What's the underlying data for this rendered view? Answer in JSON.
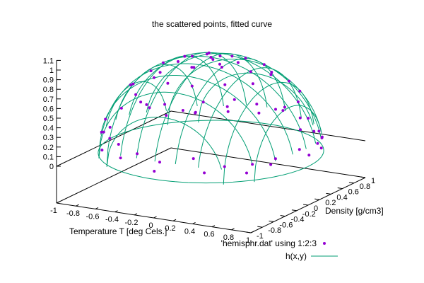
{
  "chart_data": {
    "type": "scatter",
    "title": "the scattered points, fitted curve",
    "xlabel": "Temperature T  [deg Cels.]",
    "ylabel": "Density [g/cm3]",
    "zlabel": "",
    "xlim": [
      -1,
      1
    ],
    "ylim": [
      -1,
      1
    ],
    "zlim": [
      0,
      1.1
    ],
    "x_ticks": [
      -1,
      -0.8,
      -0.6,
      -0.4,
      -0.2,
      0,
      0.2,
      0.4,
      0.6,
      0.8,
      1
    ],
    "x_tick_labels": [
      "-1",
      "-0.8",
      "-0.6",
      "-0.4",
      "-0.2",
      "0",
      "0.2",
      "0.4",
      "0.6",
      "0.8",
      "1"
    ],
    "y_ticks": [
      -1,
      -0.8,
      -0.6,
      -0.4,
      -0.2,
      0,
      0.2,
      0.4,
      0.6,
      0.8,
      1
    ],
    "y_tick_labels": [
      "-1",
      "-0.8",
      "-0.6",
      "-0.4",
      "-0.2",
      "0",
      "0.2",
      "0.4",
      "0.6",
      "0.8",
      "1"
    ],
    "z_ticks": [
      0,
      0.1,
      0.2,
      0.3,
      0.4,
      0.5,
      0.6,
      0.7,
      0.8,
      0.9,
      1,
      1.1
    ],
    "z_tick_labels": [
      "0",
      "0.1",
      "0.2",
      "0.3",
      "0.4",
      "0.5",
      "0.6",
      "0.7",
      "0.8",
      "0.9",
      "1",
      "1.1"
    ],
    "grid": false,
    "legend_position": "bottom-right",
    "series": [
      {
        "name": "'hemisphr.dat' using 1:2:3",
        "kind": "points",
        "color": "#9400d3",
        "points": [
          [
            -0.95,
            0.05,
            0.31
          ],
          [
            -0.9,
            0.3,
            0.31
          ],
          [
            -0.85,
            -0.4,
            0.34
          ],
          [
            -0.8,
            0.55,
            0.23
          ],
          [
            -0.75,
            -0.6,
            0.28
          ],
          [
            -0.7,
            0.7,
            0.14
          ],
          [
            -0.6,
            -0.75,
            0.28
          ],
          [
            -0.55,
            0.8,
            0.22
          ],
          [
            -0.45,
            -0.85,
            0.27
          ],
          [
            -0.3,
            0.92,
            0.25
          ],
          [
            -0.2,
            -0.95,
            0.24
          ],
          [
            -0.1,
            0.97,
            0.22
          ],
          [
            0.05,
            -0.98,
            0.2
          ],
          [
            0.2,
            0.95,
            0.24
          ],
          [
            0.35,
            -0.9,
            0.26
          ],
          [
            0.5,
            0.85,
            0.2
          ],
          [
            0.6,
            -0.78,
            0.18
          ],
          [
            0.7,
            0.7,
            0.14
          ],
          [
            0.78,
            -0.6,
            0.18
          ],
          [
            0.85,
            0.5,
            0.16
          ],
          [
            0.9,
            -0.4,
            0.2
          ],
          [
            0.95,
            0.25,
            0.18
          ],
          [
            0.97,
            -0.1,
            0.22
          ],
          [
            0.92,
            0.0,
            0.39
          ],
          [
            -0.8,
            0.0,
            0.6
          ],
          [
            -0.7,
            0.3,
            0.65
          ],
          [
            -0.65,
            -0.3,
            0.7
          ],
          [
            -0.5,
            0.55,
            0.66
          ],
          [
            -0.45,
            -0.55,
            0.7
          ],
          [
            -0.3,
            0.7,
            0.65
          ],
          [
            -0.25,
            -0.7,
            0.67
          ],
          [
            -0.05,
            0.78,
            0.62
          ],
          [
            0.0,
            -0.78,
            0.62
          ],
          [
            0.2,
            0.72,
            0.67
          ],
          [
            0.25,
            -0.7,
            0.66
          ],
          [
            0.45,
            0.6,
            0.65
          ],
          [
            0.5,
            -0.55,
            0.67
          ],
          [
            0.65,
            0.45,
            0.62
          ],
          [
            0.7,
            -0.35,
            0.63
          ],
          [
            0.78,
            0.2,
            0.6
          ],
          [
            0.8,
            -0.1,
            0.6
          ],
          [
            -0.55,
            0.1,
            0.83
          ],
          [
            -0.5,
            -0.2,
            0.84
          ],
          [
            -0.4,
            0.35,
            0.85
          ],
          [
            -0.35,
            -0.4,
            0.85
          ],
          [
            -0.2,
            0.5,
            0.84
          ],
          [
            -0.15,
            -0.5,
            0.85
          ],
          [
            0.05,
            0.52,
            0.85
          ],
          [
            0.1,
            -0.5,
            0.86
          ],
          [
            0.3,
            0.42,
            0.85
          ],
          [
            0.35,
            -0.35,
            0.87
          ],
          [
            0.5,
            0.2,
            0.84
          ],
          [
            0.52,
            -0.15,
            0.85
          ],
          [
            -0.3,
            0.05,
            0.95
          ],
          [
            -0.25,
            -0.15,
            0.96
          ],
          [
            -0.15,
            0.22,
            0.96
          ],
          [
            -0.05,
            -0.25,
            0.96
          ],
          [
            0.1,
            0.2,
            0.97
          ],
          [
            0.15,
            -0.1,
            0.98
          ],
          [
            0.25,
            0.05,
            0.97
          ],
          [
            0.0,
            0.0,
            1.0
          ],
          [
            -0.1,
            0.1,
            0.99
          ],
          [
            0.05,
            -0.05,
            1.0
          ],
          [
            -0.6,
            0.75,
            0.12
          ],
          [
            -0.35,
            0.88,
            0.18
          ],
          [
            0.1,
            0.96,
            0.2
          ],
          [
            0.4,
            0.88,
            0.18
          ],
          [
            0.6,
            0.78,
            0.1
          ],
          [
            -0.98,
            -0.1,
            0.15
          ],
          [
            -0.92,
            -0.35,
            0.18
          ],
          [
            -0.88,
            0.42,
            0.22
          ],
          [
            -0.72,
            -0.68,
            0.12
          ],
          [
            -0.4,
            -0.9,
            0.15
          ],
          [
            0.0,
            -0.99,
            0.1
          ],
          [
            0.45,
            -0.88,
            0.12
          ],
          [
            0.75,
            -0.65,
            0.1
          ],
          [
            0.88,
            -0.45,
            0.15
          ],
          [
            0.98,
            0.05,
            0.12
          ],
          [
            0.93,
            0.35,
            0.1
          ],
          [
            0.8,
            0.58,
            0.12
          ]
        ]
      },
      {
        "name": "h(x,y)",
        "kind": "surface-mesh",
        "color": "#009e73",
        "function": "sqrt(1 - x^2 - y^2)"
      }
    ]
  }
}
